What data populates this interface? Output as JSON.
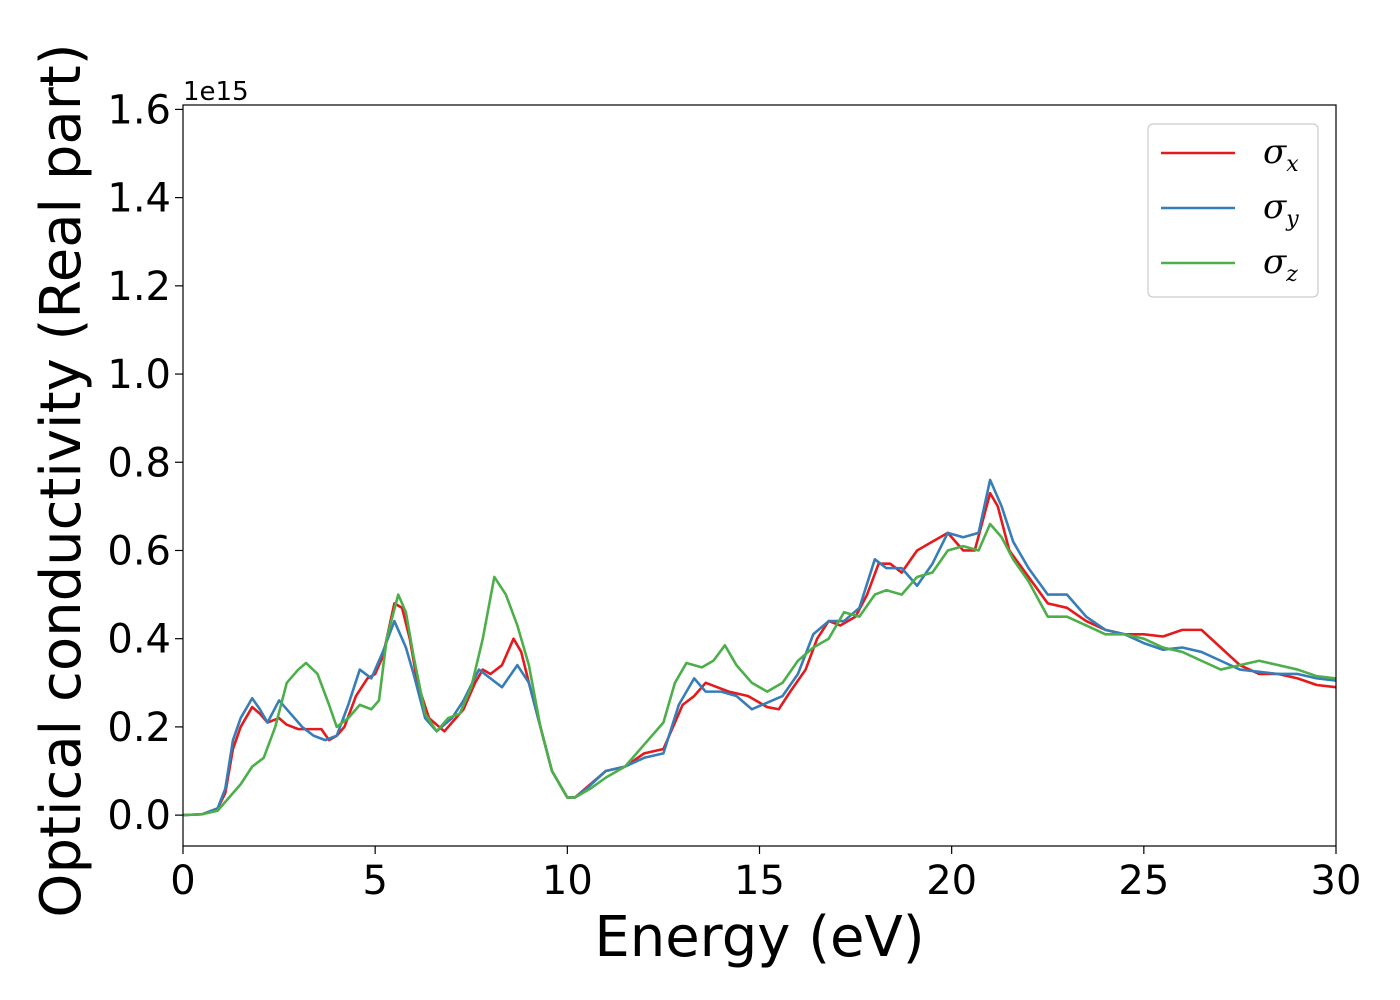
{
  "chart_data": {
    "type": "line",
    "xlabel": "Energy (eV)",
    "ylabel": "Optical conductivity (Real part)",
    "y_offset_label": "1e15",
    "xlim": [
      0,
      30
    ],
    "ylim": [
      -0.07,
      1.61
    ],
    "xticks": [
      0,
      5,
      10,
      15,
      20,
      25,
      30
    ],
    "xtick_labels": [
      "0",
      "5",
      "10",
      "15",
      "20",
      "25",
      "30"
    ],
    "yticks": [
      0.0,
      0.2,
      0.4,
      0.6,
      0.8,
      1.0,
      1.2,
      1.4,
      1.6
    ],
    "ytick_labels": [
      "0.0",
      "0.2",
      "0.4",
      "0.6",
      "0.8",
      "1.0",
      "1.2",
      "1.4",
      "1.6"
    ],
    "grid": false,
    "legend_position": "top-right",
    "series": [
      {
        "name": "σx",
        "symbol": "σ",
        "subscript": "x",
        "color": "#e41a1c",
        "points": [
          [
            0,
            0
          ],
          [
            0.5,
            0.002
          ],
          [
            0.9,
            0.015
          ],
          [
            1.1,
            0.05
          ],
          [
            1.3,
            0.15
          ],
          [
            1.5,
            0.2
          ],
          [
            1.8,
            0.245
          ],
          [
            2.0,
            0.23
          ],
          [
            2.2,
            0.21
          ],
          [
            2.5,
            0.22
          ],
          [
            2.7,
            0.205
          ],
          [
            3.0,
            0.195
          ],
          [
            3.3,
            0.195
          ],
          [
            3.6,
            0.195
          ],
          [
            3.8,
            0.17
          ],
          [
            4.0,
            0.18
          ],
          [
            4.2,
            0.2
          ],
          [
            4.5,
            0.27
          ],
          [
            4.8,
            0.31
          ],
          [
            5.0,
            0.32
          ],
          [
            5.2,
            0.36
          ],
          [
            5.5,
            0.48
          ],
          [
            5.7,
            0.47
          ],
          [
            5.9,
            0.4
          ],
          [
            6.1,
            0.3
          ],
          [
            6.4,
            0.22
          ],
          [
            6.8,
            0.19
          ],
          [
            7.0,
            0.21
          ],
          [
            7.3,
            0.24
          ],
          [
            7.6,
            0.3
          ],
          [
            7.8,
            0.33
          ],
          [
            8.0,
            0.32
          ],
          [
            8.3,
            0.34
          ],
          [
            8.6,
            0.4
          ],
          [
            8.8,
            0.37
          ],
          [
            9.0,
            0.3
          ],
          [
            9.3,
            0.2
          ],
          [
            9.6,
            0.1
          ],
          [
            10.0,
            0.04
          ],
          [
            10.2,
            0.04
          ],
          [
            10.6,
            0.07
          ],
          [
            11.0,
            0.1
          ],
          [
            11.5,
            0.11
          ],
          [
            12.0,
            0.14
          ],
          [
            12.5,
            0.15
          ],
          [
            13.0,
            0.25
          ],
          [
            13.3,
            0.27
          ],
          [
            13.6,
            0.3
          ],
          [
            13.9,
            0.29
          ],
          [
            14.2,
            0.28
          ],
          [
            14.7,
            0.27
          ],
          [
            15.2,
            0.245
          ],
          [
            15.5,
            0.24
          ],
          [
            15.8,
            0.28
          ],
          [
            16.2,
            0.33
          ],
          [
            16.5,
            0.4
          ],
          [
            16.8,
            0.44
          ],
          [
            17.1,
            0.43
          ],
          [
            17.5,
            0.45
          ],
          [
            17.8,
            0.5
          ],
          [
            18.1,
            0.57
          ],
          [
            18.4,
            0.57
          ],
          [
            18.7,
            0.55
          ],
          [
            19.1,
            0.6
          ],
          [
            19.5,
            0.62
          ],
          [
            19.9,
            0.64
          ],
          [
            20.3,
            0.6
          ],
          [
            20.6,
            0.6
          ],
          [
            21.0,
            0.73
          ],
          [
            21.2,
            0.7
          ],
          [
            21.5,
            0.6
          ],
          [
            22.0,
            0.54
          ],
          [
            22.5,
            0.48
          ],
          [
            23.0,
            0.47
          ],
          [
            23.5,
            0.44
          ],
          [
            24.0,
            0.42
          ],
          [
            24.5,
            0.41
          ],
          [
            25.0,
            0.41
          ],
          [
            25.5,
            0.405
          ],
          [
            26.0,
            0.42
          ],
          [
            26.5,
            0.42
          ],
          [
            27.0,
            0.38
          ],
          [
            27.5,
            0.34
          ],
          [
            28.0,
            0.32
          ],
          [
            28.5,
            0.32
          ],
          [
            29.0,
            0.31
          ],
          [
            29.5,
            0.295
          ],
          [
            30.0,
            0.29
          ]
        ]
      },
      {
        "name": "σy",
        "symbol": "σ",
        "subscript": "y",
        "color": "#377eb8",
        "points": [
          [
            0,
            0
          ],
          [
            0.5,
            0.002
          ],
          [
            0.9,
            0.015
          ],
          [
            1.1,
            0.06
          ],
          [
            1.3,
            0.17
          ],
          [
            1.5,
            0.22
          ],
          [
            1.8,
            0.265
          ],
          [
            2.0,
            0.24
          ],
          [
            2.2,
            0.21
          ],
          [
            2.5,
            0.26
          ],
          [
            2.8,
            0.23
          ],
          [
            3.1,
            0.2
          ],
          [
            3.4,
            0.18
          ],
          [
            3.7,
            0.17
          ],
          [
            4.0,
            0.18
          ],
          [
            4.3,
            0.25
          ],
          [
            4.6,
            0.33
          ],
          [
            4.9,
            0.31
          ],
          [
            5.2,
            0.37
          ],
          [
            5.5,
            0.44
          ],
          [
            5.8,
            0.38
          ],
          [
            6.0,
            0.32
          ],
          [
            6.3,
            0.22
          ],
          [
            6.6,
            0.19
          ],
          [
            7.0,
            0.22
          ],
          [
            7.3,
            0.26
          ],
          [
            7.7,
            0.33
          ],
          [
            8.0,
            0.31
          ],
          [
            8.3,
            0.29
          ],
          [
            8.7,
            0.34
          ],
          [
            9.0,
            0.3
          ],
          [
            9.3,
            0.2
          ],
          [
            9.6,
            0.1
          ],
          [
            10.0,
            0.04
          ],
          [
            10.2,
            0.04
          ],
          [
            10.5,
            0.06
          ],
          [
            11.0,
            0.1
          ],
          [
            11.5,
            0.11
          ],
          [
            12.0,
            0.13
          ],
          [
            12.5,
            0.14
          ],
          [
            12.9,
            0.25
          ],
          [
            13.3,
            0.31
          ],
          [
            13.6,
            0.28
          ],
          [
            14.0,
            0.28
          ],
          [
            14.4,
            0.27
          ],
          [
            14.8,
            0.24
          ],
          [
            15.2,
            0.255
          ],
          [
            15.6,
            0.27
          ],
          [
            16.0,
            0.32
          ],
          [
            16.4,
            0.41
          ],
          [
            16.8,
            0.44
          ],
          [
            17.2,
            0.44
          ],
          [
            17.6,
            0.47
          ],
          [
            18.0,
            0.58
          ],
          [
            18.3,
            0.56
          ],
          [
            18.7,
            0.56
          ],
          [
            19.1,
            0.52
          ],
          [
            19.5,
            0.57
          ],
          [
            19.9,
            0.64
          ],
          [
            20.3,
            0.63
          ],
          [
            20.7,
            0.64
          ],
          [
            21.0,
            0.76
          ],
          [
            21.3,
            0.7
          ],
          [
            21.6,
            0.62
          ],
          [
            22.0,
            0.56
          ],
          [
            22.5,
            0.5
          ],
          [
            23.0,
            0.5
          ],
          [
            23.5,
            0.45
          ],
          [
            24.0,
            0.42
          ],
          [
            24.5,
            0.41
          ],
          [
            25.0,
            0.39
          ],
          [
            25.5,
            0.375
          ],
          [
            26.0,
            0.38
          ],
          [
            26.5,
            0.37
          ],
          [
            27.0,
            0.35
          ],
          [
            27.5,
            0.33
          ],
          [
            28.0,
            0.325
          ],
          [
            28.5,
            0.32
          ],
          [
            29.0,
            0.32
          ],
          [
            29.5,
            0.31
          ],
          [
            30.0,
            0.305
          ]
        ]
      },
      {
        "name": "σz",
        "symbol": "σ",
        "subscript": "z",
        "color": "#4daf4a",
        "points": [
          [
            0,
            0
          ],
          [
            0.5,
            0.002
          ],
          [
            0.9,
            0.01
          ],
          [
            1.2,
            0.04
          ],
          [
            1.5,
            0.07
          ],
          [
            1.8,
            0.11
          ],
          [
            2.1,
            0.13
          ],
          [
            2.4,
            0.2
          ],
          [
            2.7,
            0.3
          ],
          [
            3.0,
            0.33
          ],
          [
            3.2,
            0.345
          ],
          [
            3.5,
            0.32
          ],
          [
            3.8,
            0.25
          ],
          [
            4.0,
            0.2
          ],
          [
            4.3,
            0.22
          ],
          [
            4.6,
            0.25
          ],
          [
            4.9,
            0.24
          ],
          [
            5.1,
            0.26
          ],
          [
            5.3,
            0.4
          ],
          [
            5.6,
            0.5
          ],
          [
            5.8,
            0.46
          ],
          [
            6.0,
            0.36
          ],
          [
            6.3,
            0.23
          ],
          [
            6.6,
            0.19
          ],
          [
            6.9,
            0.22
          ],
          [
            7.2,
            0.23
          ],
          [
            7.5,
            0.29
          ],
          [
            7.8,
            0.4
          ],
          [
            8.1,
            0.54
          ],
          [
            8.4,
            0.5
          ],
          [
            8.7,
            0.43
          ],
          [
            9.0,
            0.34
          ],
          [
            9.3,
            0.2
          ],
          [
            9.6,
            0.1
          ],
          [
            10.0,
            0.04
          ],
          [
            10.2,
            0.04
          ],
          [
            10.6,
            0.06
          ],
          [
            11.0,
            0.085
          ],
          [
            11.5,
            0.11
          ],
          [
            12.0,
            0.16
          ],
          [
            12.5,
            0.21
          ],
          [
            12.8,
            0.3
          ],
          [
            13.1,
            0.345
          ],
          [
            13.5,
            0.335
          ],
          [
            13.8,
            0.35
          ],
          [
            14.1,
            0.385
          ],
          [
            14.4,
            0.34
          ],
          [
            14.8,
            0.3
          ],
          [
            15.2,
            0.28
          ],
          [
            15.6,
            0.3
          ],
          [
            16.0,
            0.35
          ],
          [
            16.4,
            0.38
          ],
          [
            16.8,
            0.4
          ],
          [
            17.2,
            0.46
          ],
          [
            17.6,
            0.45
          ],
          [
            18.0,
            0.5
          ],
          [
            18.3,
            0.51
          ],
          [
            18.7,
            0.5
          ],
          [
            19.1,
            0.54
          ],
          [
            19.5,
            0.55
          ],
          [
            19.9,
            0.6
          ],
          [
            20.3,
            0.61
          ],
          [
            20.7,
            0.6
          ],
          [
            21.0,
            0.66
          ],
          [
            21.3,
            0.63
          ],
          [
            21.6,
            0.58
          ],
          [
            22.0,
            0.53
          ],
          [
            22.5,
            0.45
          ],
          [
            23.0,
            0.45
          ],
          [
            23.5,
            0.43
          ],
          [
            24.0,
            0.41
          ],
          [
            24.5,
            0.41
          ],
          [
            25.0,
            0.4
          ],
          [
            25.5,
            0.38
          ],
          [
            26.0,
            0.37
          ],
          [
            26.5,
            0.35
          ],
          [
            27.0,
            0.33
          ],
          [
            27.5,
            0.34
          ],
          [
            28.0,
            0.35
          ],
          [
            28.5,
            0.34
          ],
          [
            29.0,
            0.33
          ],
          [
            29.5,
            0.315
          ],
          [
            30.0,
            0.31
          ]
        ]
      }
    ]
  }
}
